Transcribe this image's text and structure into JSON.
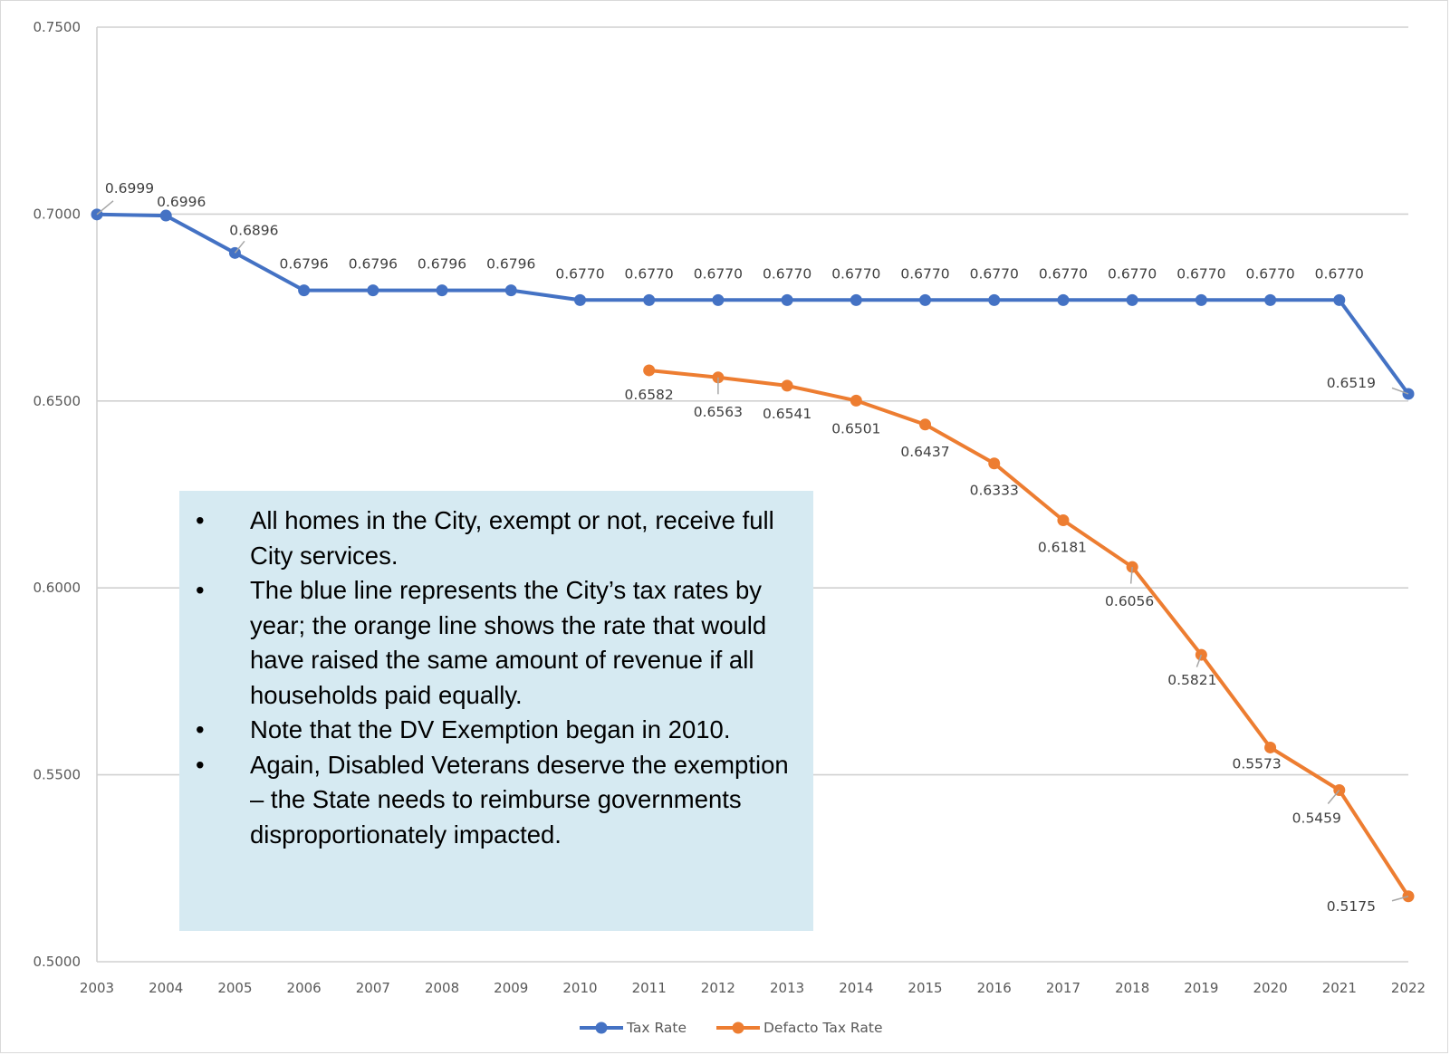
{
  "chart_data": {
    "type": "line",
    "categories": [
      "2003",
      "2004",
      "2005",
      "2006",
      "2007",
      "2008",
      "2009",
      "2010",
      "2011",
      "2012",
      "2013",
      "2014",
      "2015",
      "2016",
      "2017",
      "2018",
      "2019",
      "2020",
      "2021",
      "2022"
    ],
    "ylim": [
      0.5,
      0.75
    ],
    "yticks": [
      "0.5000",
      "0.5500",
      "0.6000",
      "0.6500",
      "0.7000",
      "0.7500"
    ],
    "grid": true,
    "legend_position": "bottom",
    "series": [
      {
        "name": "Tax Rate",
        "color": "#4472c4",
        "values": [
          0.6999,
          0.6996,
          0.6896,
          0.6796,
          0.6796,
          0.6796,
          0.6796,
          0.677,
          0.677,
          0.677,
          0.677,
          0.677,
          0.677,
          0.677,
          0.677,
          0.677,
          0.677,
          0.677,
          0.677,
          0.6519
        ],
        "labels": [
          "0.6999",
          "0.6996",
          "0.6896",
          "0.6796",
          "0.6796",
          "0.6796",
          "0.6796",
          "0.6770",
          "0.6770",
          "0.6770",
          "0.6770",
          "0.6770",
          "0.6770",
          "0.6770",
          "0.6770",
          "0.6770",
          "0.6770",
          "0.6770",
          "0.6770",
          "0.6519"
        ]
      },
      {
        "name": "Defacto Tax Rate",
        "color": "#ed7d31",
        "values": [
          null,
          null,
          null,
          null,
          null,
          null,
          null,
          null,
          0.6582,
          0.6563,
          0.6541,
          0.6501,
          0.6437,
          0.6333,
          0.6181,
          0.6056,
          0.5821,
          0.5573,
          0.5459,
          0.5175
        ],
        "labels": [
          null,
          null,
          null,
          null,
          null,
          null,
          null,
          null,
          "0.6582",
          "0.6563",
          "0.6541",
          "0.6501",
          "0.6437",
          "0.6333",
          "0.6181",
          "0.6056",
          "0.5821",
          "0.5573",
          "0.5459",
          "0.5175"
        ]
      }
    ]
  },
  "note": {
    "bullet": "•",
    "items": [
      "All homes in the City, exempt or not, receive full City services.",
      "The blue line represents the City’s tax rates by year; the orange line shows the rate that would have raised the same amount of revenue if all households paid equally.",
      "Note that the DV Exemption began in 2010.",
      "Again, Disabled Veterans deserve the exemption – the State needs to reimburse governments disproportionately impacted."
    ]
  }
}
